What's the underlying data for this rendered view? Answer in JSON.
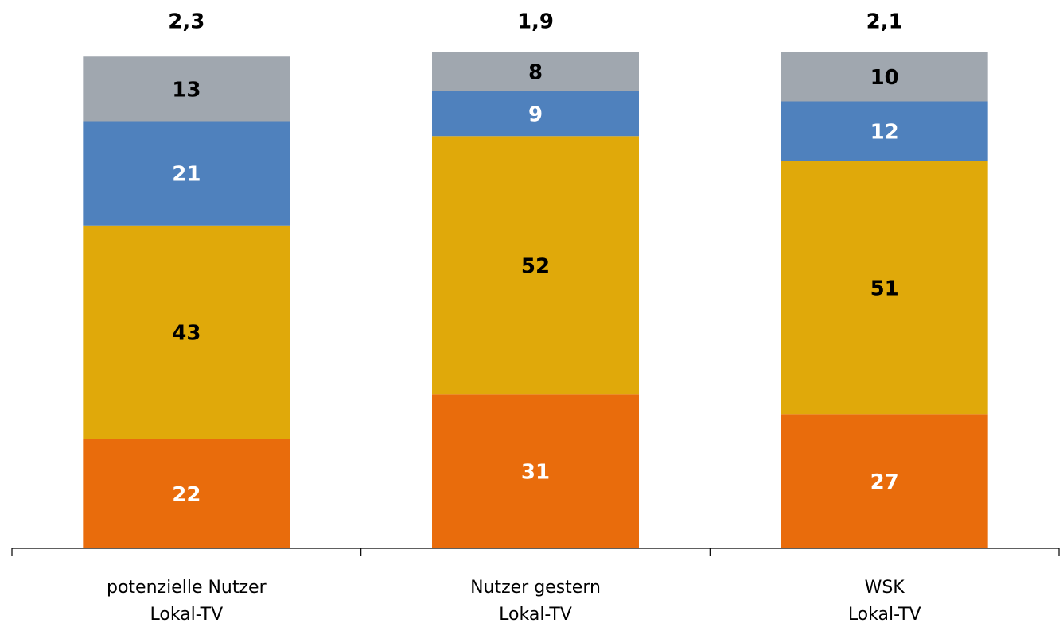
{
  "chart_data": {
    "type": "stacked-bar",
    "categories": [
      [
        "potenzielle Nutzer",
        "Lokal-TV"
      ],
      [
        "Nutzer gestern",
        "Lokal-TV"
      ],
      [
        "WSK",
        "Lokal-TV"
      ]
    ],
    "series": [
      {
        "color": "#E96C0C",
        "label_color": "#ffffff",
        "values": [
          22,
          31,
          27
        ]
      },
      {
        "color": "#E0A90A",
        "label_color": "#000000",
        "values": [
          43,
          52,
          51
        ]
      },
      {
        "color": "#4F81BD",
        "label_color": "#ffffff",
        "values": [
          21,
          9,
          12
        ]
      },
      {
        "color": "#A0A7AF",
        "label_color": "#000000",
        "values": [
          13,
          8,
          10
        ]
      }
    ],
    "annotations": [
      "2,3",
      "1,9",
      "2,1"
    ],
    "ylim": [
      0,
      100
    ]
  }
}
